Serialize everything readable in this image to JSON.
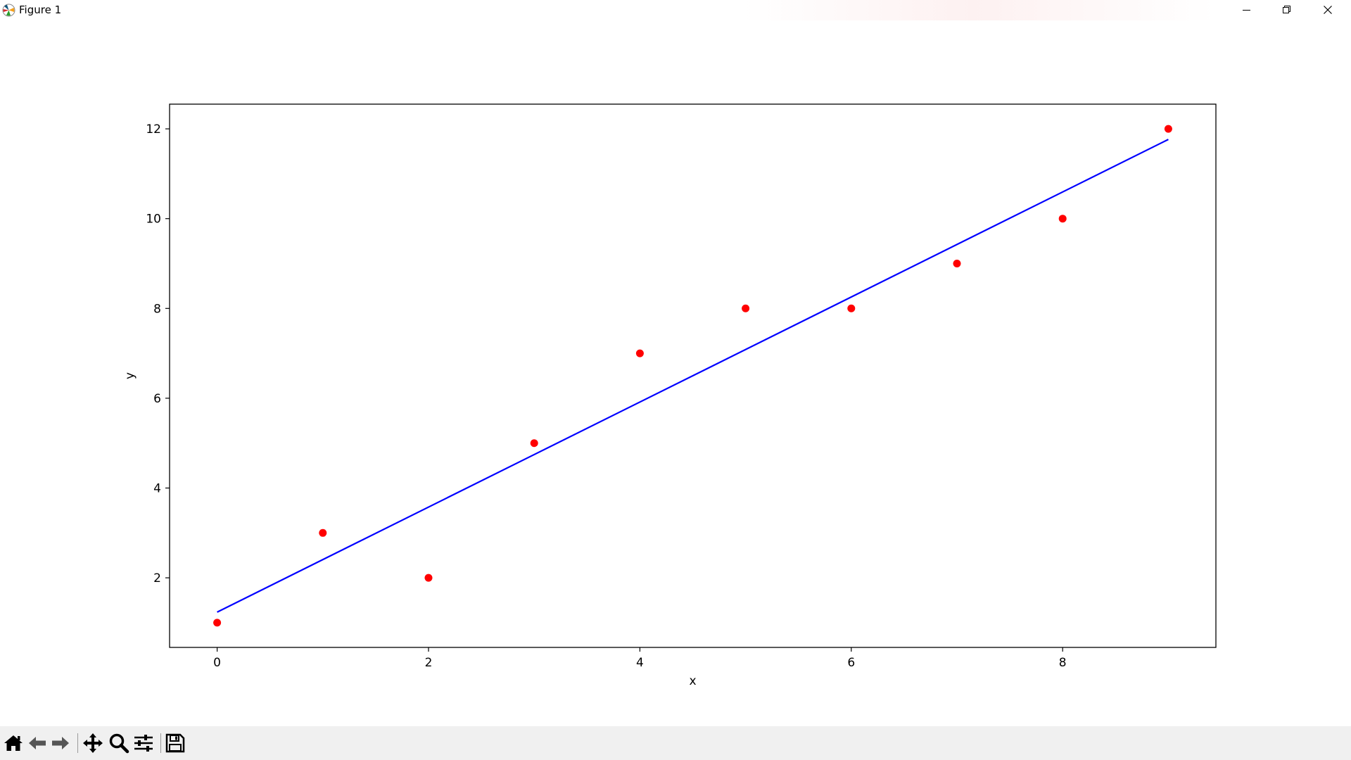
{
  "window": {
    "title": "Figure 1"
  },
  "toolbar": {
    "tools": [
      {
        "name": "home",
        "icon": "home-icon"
      },
      {
        "name": "back",
        "icon": "arrow-left-icon"
      },
      {
        "name": "forward",
        "icon": "arrow-right-icon"
      },
      {
        "name": "pan",
        "icon": "move-icon"
      },
      {
        "name": "zoom",
        "icon": "magnifier-icon"
      },
      {
        "name": "configure-subplots",
        "icon": "sliders-icon"
      },
      {
        "name": "save",
        "icon": "floppy-disk-icon"
      }
    ]
  },
  "chart_data": {
    "type": "scatter",
    "title": "",
    "xlabel": "x",
    "ylabel": "y",
    "xlim": [
      -0.45,
      9.45
    ],
    "ylim": [
      0.45,
      12.55
    ],
    "xticks": [
      0,
      2,
      4,
      6,
      8
    ],
    "yticks": [
      2,
      4,
      6,
      8,
      10,
      12
    ],
    "grid": false,
    "legend": "none",
    "series": [
      {
        "kind": "scatter",
        "color": "#ff0000",
        "x": [
          0,
          1,
          2,
          3,
          4,
          5,
          6,
          7,
          8,
          9
        ],
        "y": [
          1,
          3,
          2,
          5,
          7,
          8,
          8,
          9,
          10,
          12
        ]
      },
      {
        "kind": "line",
        "color": "#0000ff",
        "x": [
          0,
          9
        ],
        "y": [
          1.236,
          11.764
        ]
      }
    ]
  }
}
